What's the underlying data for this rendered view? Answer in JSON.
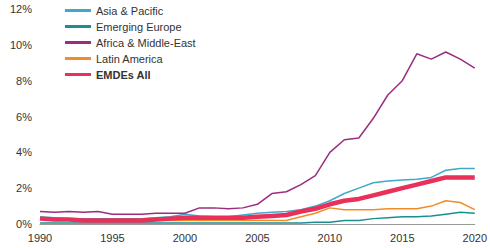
{
  "chart_data": {
    "type": "line",
    "x": [
      1990,
      1991,
      1992,
      1993,
      1994,
      1995,
      1996,
      1997,
      1998,
      1999,
      2000,
      2001,
      2002,
      2003,
      2004,
      2005,
      2006,
      2007,
      2008,
      2009,
      2010,
      2011,
      2012,
      2013,
      2014,
      2015,
      2016,
      2017,
      2018,
      2019,
      2020
    ],
    "series": [
      {
        "name": "Asia & Pacific",
        "color": "#3fa9c9",
        "line_style": "solid",
        "values": [
          0.4,
          0.35,
          0.3,
          0.3,
          0.3,
          0.3,
          0.3,
          0.3,
          0.35,
          0.4,
          0.55,
          0.45,
          0.4,
          0.4,
          0.5,
          0.6,
          0.65,
          0.7,
          0.8,
          1.0,
          1.3,
          1.7,
          2.0,
          2.3,
          2.4,
          2.45,
          2.5,
          2.6,
          3.0,
          3.1,
          3.1
        ]
      },
      {
        "name": "Emerging Europe",
        "color": "#1a8f8f",
        "line_style": "solid",
        "values": [
          0.05,
          0.05,
          0.05,
          0.05,
          0.05,
          0.05,
          0.05,
          0.05,
          0.05,
          0.05,
          0.05,
          0.05,
          0.05,
          0.05,
          0.05,
          0.05,
          0.05,
          0.05,
          0.05,
          0.1,
          0.1,
          0.2,
          0.2,
          0.3,
          0.35,
          0.4,
          0.4,
          0.45,
          0.55,
          0.65,
          0.6
        ]
      },
      {
        "name": "Africa & Middle-East",
        "color": "#9b2d7f",
        "line_style": "solid",
        "values": [
          0.7,
          0.65,
          0.7,
          0.65,
          0.7,
          0.55,
          0.55,
          0.55,
          0.6,
          0.6,
          0.6,
          0.9,
          0.9,
          0.85,
          0.9,
          1.1,
          1.7,
          1.8,
          2.2,
          2.7,
          4.0,
          4.7,
          4.8,
          5.9,
          7.2,
          8.0,
          9.5,
          9.2,
          9.6,
          9.2,
          8.7
        ]
      },
      {
        "name": "Latin America",
        "color": "#f28c28",
        "line_style": "solid",
        "values": [
          0.3,
          0.25,
          0.2,
          0.2,
          0.2,
          0.2,
          0.2,
          0.2,
          0.2,
          0.2,
          0.2,
          0.2,
          0.2,
          0.2,
          0.2,
          0.2,
          0.2,
          0.2,
          0.4,
          0.6,
          0.9,
          0.8,
          0.8,
          0.8,
          0.85,
          0.85,
          0.85,
          1.0,
          1.3,
          1.2,
          0.8
        ]
      },
      {
        "name": "EMDEs All",
        "color": "#e8305a",
        "line_style": "thick",
        "values": [
          0.3,
          0.25,
          0.25,
          0.2,
          0.2,
          0.2,
          0.2,
          0.2,
          0.25,
          0.3,
          0.35,
          0.35,
          0.35,
          0.35,
          0.35,
          0.4,
          0.45,
          0.5,
          0.7,
          0.85,
          1.1,
          1.3,
          1.4,
          1.6,
          1.8,
          2.0,
          2.2,
          2.4,
          2.6,
          2.6,
          2.6
        ]
      }
    ],
    "xlim": [
      1990,
      2020
    ],
    "xticks": [
      1990,
      1995,
      2000,
      2005,
      2010,
      2015,
      2020
    ],
    "ylim": [
      0,
      12
    ],
    "yticks": [
      {
        "value": 0,
        "label": "0%"
      },
      {
        "value": 2,
        "label": "2%"
      },
      {
        "value": 4,
        "label": "4%"
      },
      {
        "value": 6,
        "label": "6%"
      },
      {
        "value": 8,
        "label": "8%"
      },
      {
        "value": 10,
        "label": "10%"
      },
      {
        "value": 12,
        "label": "12%"
      }
    ],
    "grid": false,
    "legend": "top-left",
    "marker": "none"
  }
}
